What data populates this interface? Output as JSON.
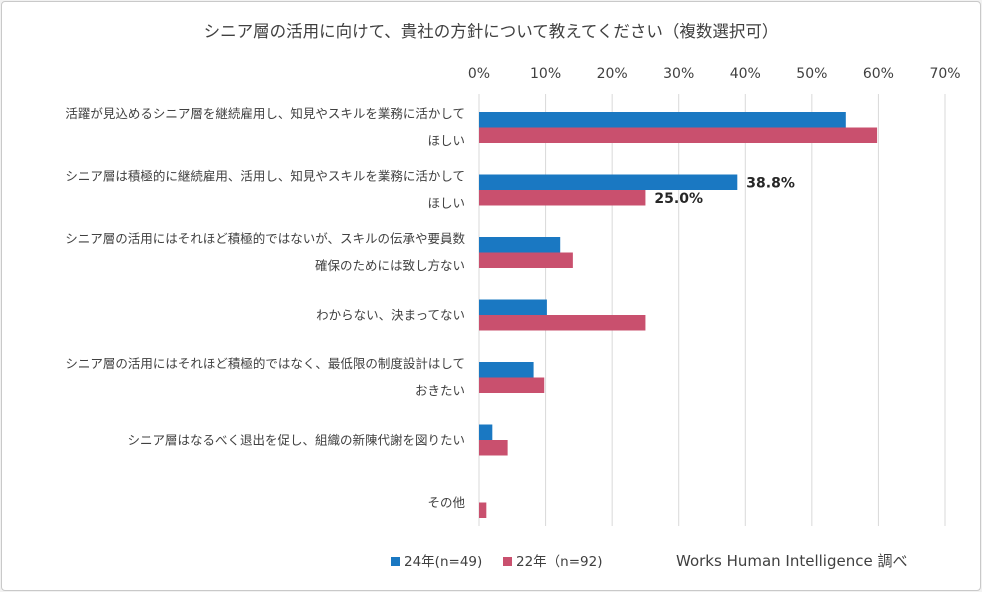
{
  "chart_data": {
    "type": "bar",
    "orientation": "horizontal",
    "title": "シニア層の活用に向けて、貴社の方針について教えてください（複数選択可）",
    "categories": [
      [
        "活躍が見込めるシニア層を継続雇用し、知見やスキルを業務に活かして",
        "ほしい"
      ],
      [
        "シニア層は積極的に継続雇用、活用し、知見やスキルを業務に活かして",
        "ほしい"
      ],
      [
        "シニア層の活用にはそれほど積極的ではないが、スキルの伝承や要員数",
        "確保のためには致し方ない"
      ],
      [
        "わからない、決まってない"
      ],
      [
        "シニア層の活用にはそれほど積極的ではなく、最低限の制度設計はして",
        "おきたい"
      ],
      [
        "シニア層はなるべく退出を促し、組織の新陳代謝を図りたい"
      ],
      [
        "その他"
      ]
    ],
    "series": [
      {
        "name": "24年(n=49)",
        "color": "#1a78c2",
        "values": [
          55.1,
          38.8,
          12.2,
          10.2,
          8.2,
          2.0,
          0
        ]
      },
      {
        "name": "22年（n=92)",
        "color": "#c9506e",
        "values": [
          59.8,
          25.0,
          14.1,
          25.0,
          9.8,
          4.3,
          1.1
        ]
      }
    ],
    "data_labels": [
      {
        "category_index": 1,
        "series_index": 0,
        "text": "38.8%"
      },
      {
        "category_index": 1,
        "series_index": 1,
        "text": "25.0%"
      }
    ],
    "xaxis": {
      "position": "top",
      "min": 0,
      "max": 70,
      "step": 10,
      "tick_labels": [
        "0%",
        "10%",
        "20%",
        "30%",
        "40%",
        "50%",
        "60%",
        "70%"
      ]
    },
    "grid": true,
    "legend_position": "bottom-left"
  },
  "credit": "Works Human Intelligence 調べ"
}
